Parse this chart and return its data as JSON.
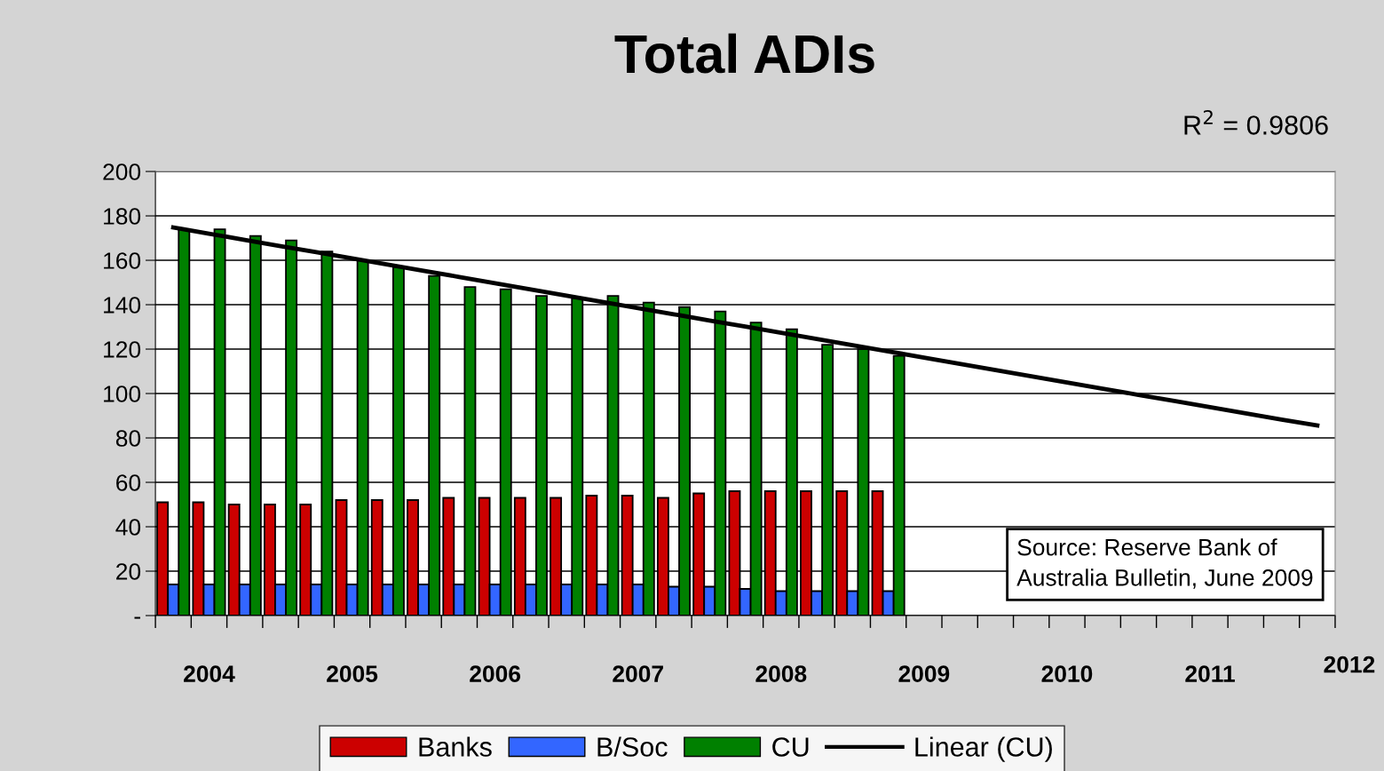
{
  "chart_data": {
    "type": "bar",
    "title": "Total ADIs",
    "categories": [
      null,
      "2004",
      null,
      null,
      null,
      "2005",
      null,
      null,
      null,
      "2006",
      null,
      null,
      null,
      "2007",
      null,
      null,
      null,
      "2008",
      null,
      null,
      null,
      "2009",
      null,
      null,
      null,
      "2010",
      null,
      null,
      null,
      "2011",
      null,
      null,
      null
    ],
    "series": [
      {
        "name": "Banks",
        "color": "#cc0000",
        "values": [
          51,
          51,
          50,
          50,
          50,
          52,
          52,
          52,
          53,
          53,
          53,
          53,
          54,
          54,
          53,
          55,
          56,
          56,
          56,
          56,
          56,
          null,
          null,
          null,
          null,
          null,
          null,
          null,
          null,
          null,
          null,
          null,
          null
        ]
      },
      {
        "name": "B/Soc",
        "color": "#3366ff",
        "values": [
          14,
          14,
          14,
          14,
          14,
          14,
          14,
          14,
          14,
          14,
          14,
          14,
          14,
          14,
          13,
          13,
          12,
          11,
          11,
          11,
          11,
          null,
          null,
          null,
          null,
          null,
          null,
          null,
          null,
          null,
          null,
          null,
          null
        ]
      },
      {
        "name": "CU",
        "color": "#008000",
        "values": [
          174,
          174,
          171,
          169,
          164,
          160,
          157,
          153,
          148,
          147,
          144,
          143,
          144,
          141,
          139,
          137,
          132,
          129,
          122,
          120,
          117,
          null,
          null,
          null,
          null,
          null,
          null,
          null,
          null,
          null,
          null,
          null,
          null
        ]
      },
      {
        "name": "Linear (CU)",
        "type": "line",
        "color": "#000000",
        "values": [
          174.8,
          172.0,
          169.2,
          166.4,
          163.7,
          160.9,
          158.1,
          155.3,
          152.5,
          149.7,
          146.9,
          144.1,
          141.3,
          138.5,
          135.7,
          132.9,
          130.2,
          127.4,
          124.6,
          121.8,
          119.0,
          116.2,
          113.4,
          110.6,
          107.8,
          105.0,
          102.2,
          99.4,
          96.7,
          93.9,
          91.1,
          88.3,
          85.6
        ]
      }
    ],
    "ylim": [
      0,
      200
    ],
    "yticks": [
      {
        "value": 0,
        "label": "-"
      },
      20,
      40,
      60,
      80,
      100,
      120,
      140,
      160,
      180,
      200
    ],
    "grid": "y",
    "legend": "bottom",
    "line_style": "solid",
    "marker": "none",
    "annotations": [
      "R$^{2}$ = 0.9806",
      "Source: Reserve Bank of\nAustralia Bulletin, June 2009",
      "2012"
    ]
  }
}
